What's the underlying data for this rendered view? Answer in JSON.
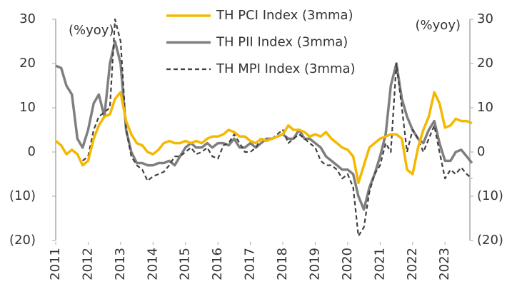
{
  "chart_data": {
    "type": "line",
    "annotations": [
      "(%yoy)",
      "(%yoy)"
    ],
    "x": [
      2011,
      2011.17,
      2011.33,
      2011.5,
      2011.67,
      2011.83,
      2012,
      2012.17,
      2012.33,
      2012.5,
      2012.67,
      2012.83,
      2013,
      2013.17,
      2013.33,
      2013.5,
      2013.67,
      2013.83,
      2014,
      2014.17,
      2014.33,
      2014.5,
      2014.67,
      2014.83,
      2015,
      2015.17,
      2015.33,
      2015.5,
      2015.67,
      2015.83,
      2016,
      2016.17,
      2016.33,
      2016.5,
      2016.67,
      2016.83,
      2017,
      2017.17,
      2017.33,
      2017.5,
      2017.67,
      2017.83,
      2018,
      2018.17,
      2018.33,
      2018.5,
      2018.67,
      2018.83,
      2019,
      2019.17,
      2019.33,
      2019.5,
      2019.67,
      2019.83,
      2020,
      2020.17,
      2020.33,
      2020.5,
      2020.67,
      2020.83,
      2021,
      2021.17,
      2021.33,
      2021.5,
      2021.67,
      2021.83,
      2022,
      2022.17,
      2022.33,
      2022.5,
      2022.67,
      2022.83,
      2023,
      2023.17,
      2023.33,
      2023.5,
      2023.67,
      2023.83
    ],
    "series": [
      {
        "name": "TH PCI Index (3mma)",
        "color": "#f5b800",
        "dash": false,
        "values": [
          2.5,
          1.5,
          -0.5,
          0.5,
          -0.5,
          -3,
          -2,
          3,
          6,
          8,
          8.5,
          12,
          13.5,
          7,
          4,
          2,
          1.5,
          0,
          -0.5,
          0.5,
          2,
          2.5,
          2,
          2,
          2.5,
          2,
          2.5,
          2,
          3,
          3.5,
          3.5,
          4,
          5,
          4.5,
          3.5,
          3.5,
          2.5,
          2,
          3,
          2.5,
          3,
          3.5,
          4,
          6,
          5,
          5,
          4.5,
          3.5,
          4,
          3.5,
          4.5,
          3,
          2,
          1,
          0.5,
          -1,
          -7,
          -3,
          1,
          2,
          3,
          3.5,
          4,
          4,
          3,
          -4,
          -5,
          1,
          5,
          8,
          13.5,
          11,
          5.5,
          6,
          7.5,
          7,
          7,
          6.5
        ]
      },
      {
        "name": "TH PII Index (3mma)",
        "color": "#7f7f7f",
        "dash": false,
        "values": [
          19.5,
          19,
          15,
          13,
          3,
          1,
          5,
          11,
          13,
          8,
          20,
          25,
          20,
          5,
          0,
          -2.5,
          -2.5,
          -3,
          -3,
          -2.5,
          -2.5,
          -2,
          -3,
          -1,
          1,
          2,
          1,
          1,
          2,
          1,
          2,
          2,
          1.5,
          3,
          1,
          1,
          2,
          1,
          2,
          3,
          3,
          3.5,
          4,
          3,
          3,
          5,
          3,
          3,
          2,
          1,
          -1,
          -2,
          -3,
          -4,
          -4,
          -5,
          -10,
          -13,
          -8,
          -5,
          -1,
          4,
          15,
          20,
          12,
          8,
          5,
          3,
          2,
          5,
          7,
          2,
          -2,
          -2,
          0,
          0.5,
          -1,
          -2.5
        ]
      },
      {
        "name": "TH MPI Index (3mma)",
        "color": "#404040",
        "dash": true,
        "values": [
          null,
          null,
          null,
          null,
          null,
          -2,
          -1,
          5,
          8,
          9,
          10,
          30,
          25,
          5,
          -1,
          -3,
          -4,
          -6.5,
          -5.5,
          -5,
          -4.5,
          -3,
          -1,
          -1,
          0,
          1,
          -0.5,
          0,
          1,
          -1,
          -1.5,
          1.5,
          2,
          4,
          2,
          0,
          0,
          1,
          3,
          2.5,
          3,
          4,
          5,
          2,
          3,
          4,
          3,
          2,
          1,
          -2,
          -3,
          -3,
          -4,
          -6,
          -5,
          -8,
          -19,
          -17,
          -9,
          -5,
          -3,
          2,
          0,
          20,
          10,
          0,
          5,
          3,
          0,
          3,
          6,
          0,
          -6,
          -4,
          -5,
          -3.5,
          -5,
          -6
        ]
      }
    ],
    "xlim": [
      2011,
      2024.25
    ],
    "xticks": [
      2011,
      2012,
      2013,
      2014,
      2015,
      2016,
      2017,
      2018,
      2019,
      2020,
      2021,
      2022,
      2023
    ],
    "ylim": [
      -20,
      30
    ],
    "yticks": [
      {
        "value": -20,
        "label": "(20)"
      },
      {
        "value": -10,
        "label": "(10)"
      },
      0,
      10,
      20,
      30
    ],
    "y2lim": [
      -20,
      30
    ],
    "y2ticks": [
      {
        "value": -20,
        "label": "(20)"
      },
      {
        "value": -10,
        "label": "(10)"
      },
      0,
      10,
      20,
      30
    ],
    "grid": false,
    "legend": "top"
  }
}
